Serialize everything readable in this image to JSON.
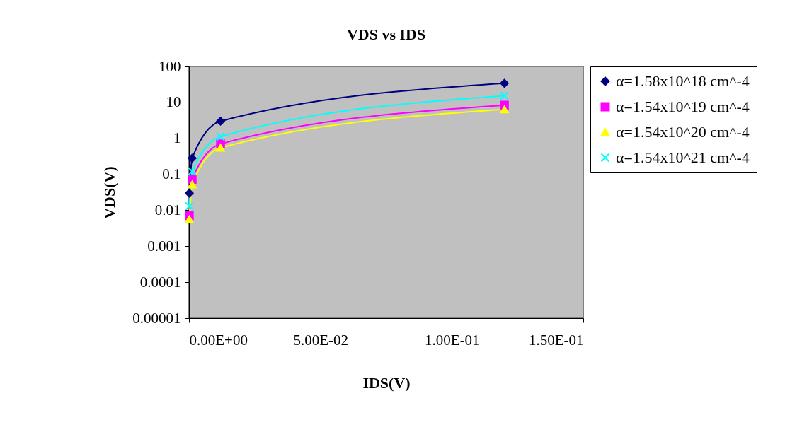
{
  "chart_data": {
    "type": "line",
    "title": "VDS vs IDS",
    "xlabel": "IDS(V)",
    "ylabel": "VDS(V)",
    "x": [
      0.00012,
      0.0012,
      0.012,
      0.12
    ],
    "series": [
      {
        "name": "α=1.58x10^18 cm^-4",
        "color": "#000080",
        "marker": "diamond",
        "values": [
          0.03,
          0.28,
          3,
          34
        ]
      },
      {
        "name": "α=1.54x10^19 cm^-4",
        "color": "#ff00ff",
        "marker": "square",
        "values": [
          0.007,
          0.072,
          0.7,
          8.4
        ]
      },
      {
        "name": "α=1.54x10^20 cm^-4",
        "color": "#ffff00",
        "marker": "triangle",
        "values": [
          0.0056,
          0.052,
          0.55,
          6.4
        ]
      },
      {
        "name": "α=1.54x10^21 cm^-4",
        "color": "#00ffff",
        "marker": "cross",
        "values": [
          0.013,
          0.12,
          1.12,
          15.3
        ]
      }
    ],
    "log": "y",
    "grid": false,
    "legend": "right",
    "xlim": [
      0,
      0.15
    ],
    "xticks": [
      {
        "value": 0,
        "label": "0.00E+00"
      },
      {
        "value": 0.05,
        "label": "5.00E-02"
      },
      {
        "value": 0.1,
        "label": "1.00E-01"
      },
      {
        "value": 0.15,
        "label": "1.50E-01"
      }
    ],
    "ylim": [
      1e-05,
      100
    ],
    "yticks": [
      100,
      10,
      1,
      0.1,
      0.01,
      0.001,
      0.0001,
      {
        "value": 1e-05,
        "label": "0.00001"
      }
    ]
  }
}
